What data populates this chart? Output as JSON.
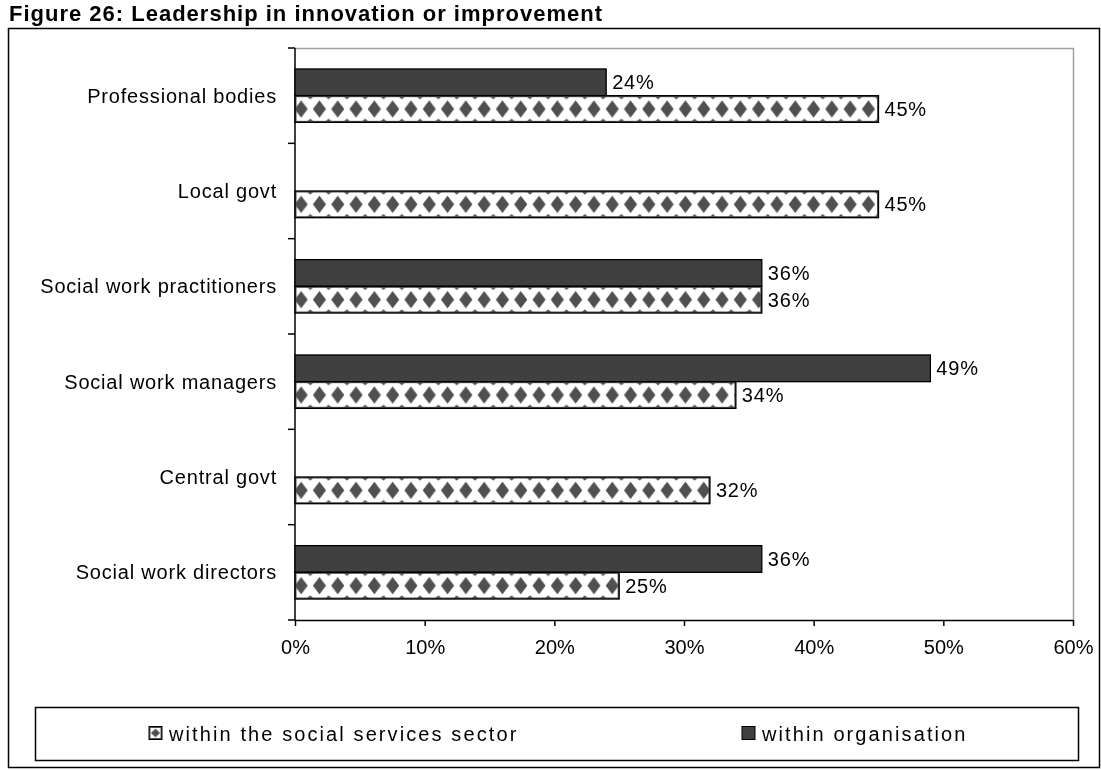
{
  "chart_data": {
    "type": "bar",
    "orientation": "horizontal",
    "title": "Figure 26: Leadership in innovation or improvement",
    "categories": [
      "Professional bodies",
      "Local govt",
      "Social work practitioners",
      "Social work managers",
      "Central govt",
      "Social work directors"
    ],
    "series": [
      {
        "name": "within organisation",
        "color": "#404040",
        "values": [
          24,
          null,
          36,
          49,
          null,
          36
        ],
        "value_labels": [
          "24%",
          null,
          "36%",
          "49%",
          null,
          "36%"
        ]
      },
      {
        "name": "within the social services sector",
        "color": "#505050",
        "values": [
          45,
          45,
          36,
          34,
          32,
          25
        ],
        "value_labels": [
          "45%",
          "45%",
          "36%",
          "34%",
          "32%",
          "25%"
        ]
      }
    ],
    "xlim": [
      0,
      60
    ],
    "xticks": [
      {
        "value": 0,
        "label": "0%"
      },
      {
        "value": 10,
        "label": "10%"
      },
      {
        "value": 20,
        "label": "20%"
      },
      {
        "value": 30,
        "label": "30%"
      },
      {
        "value": 40,
        "label": "40%"
      },
      {
        "value": 50,
        "label": "50%"
      },
      {
        "value": 60,
        "label": "60%"
      }
    ],
    "legend": "bottom"
  }
}
